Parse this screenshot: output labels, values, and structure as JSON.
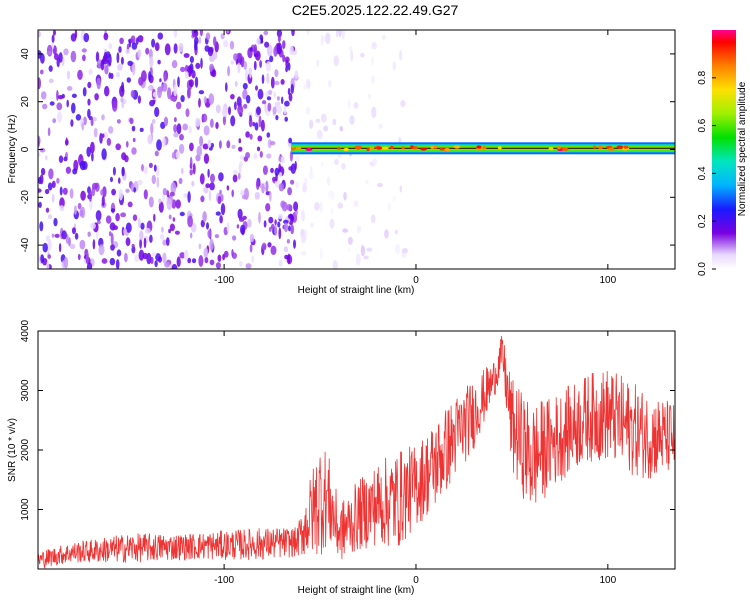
{
  "title": "C2E5.2025.122.22.49.G27",
  "chart_data": [
    {
      "type": "heatmap",
      "xlabel": "Height of straight line (km)",
      "ylabel": "Frequency (Hz)",
      "xlim": [
        -197,
        135
      ],
      "ylim": [
        -50,
        50
      ],
      "xticks": [
        -100,
        0,
        100
      ],
      "yticks": [
        -40,
        -20,
        0,
        20,
        40
      ],
      "colorbar": {
        "label": "Normalized spectral amplitude",
        "range": [
          0,
          1
        ],
        "ticks": [
          "0.0",
          "0.2",
          "0.4",
          "0.6",
          "0.8"
        ]
      },
      "regions": [
        {
          "desc": "broadband noise",
          "x": [
            -197,
            -62
          ],
          "freq": [
            -50,
            50
          ],
          "amplitude": 0.15
        },
        {
          "desc": "sparse noise",
          "x": [
            -62,
            -5
          ],
          "freq": [
            -50,
            50
          ],
          "amplitude": 0.05
        },
        {
          "desc": "signal line",
          "x": [
            -65,
            135
          ],
          "freq": [
            -2,
            3
          ],
          "amplitude": 0.9
        }
      ],
      "grid": false
    },
    {
      "type": "line",
      "xlabel": "Height of straight line (km)",
      "ylabel": "SNR (10 * v/v)",
      "xlim": [
        -197,
        135
      ],
      "ylim": [
        0,
        4000
      ],
      "xticks": [
        -100,
        0,
        100
      ],
      "yticks": [
        1000,
        2000,
        3000,
        4000
      ],
      "grid": false,
      "series": [
        {
          "color": "#ee3333",
          "points": [
            {
              "x": -197,
              "low": 0,
              "high": 300
            },
            {
              "x": -180,
              "low": 100,
              "high": 450
            },
            {
              "x": -150,
              "low": 100,
              "high": 600
            },
            {
              "x": -120,
              "low": 150,
              "high": 600
            },
            {
              "x": -100,
              "low": 150,
              "high": 650
            },
            {
              "x": -80,
              "low": 150,
              "high": 700
            },
            {
              "x": -62,
              "low": 200,
              "high": 700
            },
            {
              "x": -50,
              "low": 200,
              "high": 2200
            },
            {
              "x": -46,
              "low": 400,
              "high": 2000
            },
            {
              "x": -40,
              "low": 100,
              "high": 1100
            },
            {
              "x": -30,
              "low": 300,
              "high": 1500
            },
            {
              "x": -20,
              "low": 400,
              "high": 1800
            },
            {
              "x": -10,
              "low": 300,
              "high": 2000
            },
            {
              "x": 0,
              "low": 700,
              "high": 2100
            },
            {
              "x": 10,
              "low": 1000,
              "high": 2500
            },
            {
              "x": 20,
              "low": 1500,
              "high": 2900
            },
            {
              "x": 30,
              "low": 2000,
              "high": 3200
            },
            {
              "x": 40,
              "low": 2800,
              "high": 3500
            },
            {
              "x": 45,
              "low": 3300,
              "high": 3950
            },
            {
              "x": 50,
              "low": 1600,
              "high": 3200
            },
            {
              "x": 60,
              "low": 900,
              "high": 2800
            },
            {
              "x": 70,
              "low": 1300,
              "high": 2900
            },
            {
              "x": 80,
              "low": 1600,
              "high": 3100
            },
            {
              "x": 90,
              "low": 1800,
              "high": 3300
            },
            {
              "x": 100,
              "low": 1800,
              "high": 3400
            },
            {
              "x": 110,
              "low": 1600,
              "high": 3200
            },
            {
              "x": 120,
              "low": 1500,
              "high": 3000
            },
            {
              "x": 135,
              "low": 1600,
              "high": 2800
            }
          ]
        }
      ]
    }
  ]
}
